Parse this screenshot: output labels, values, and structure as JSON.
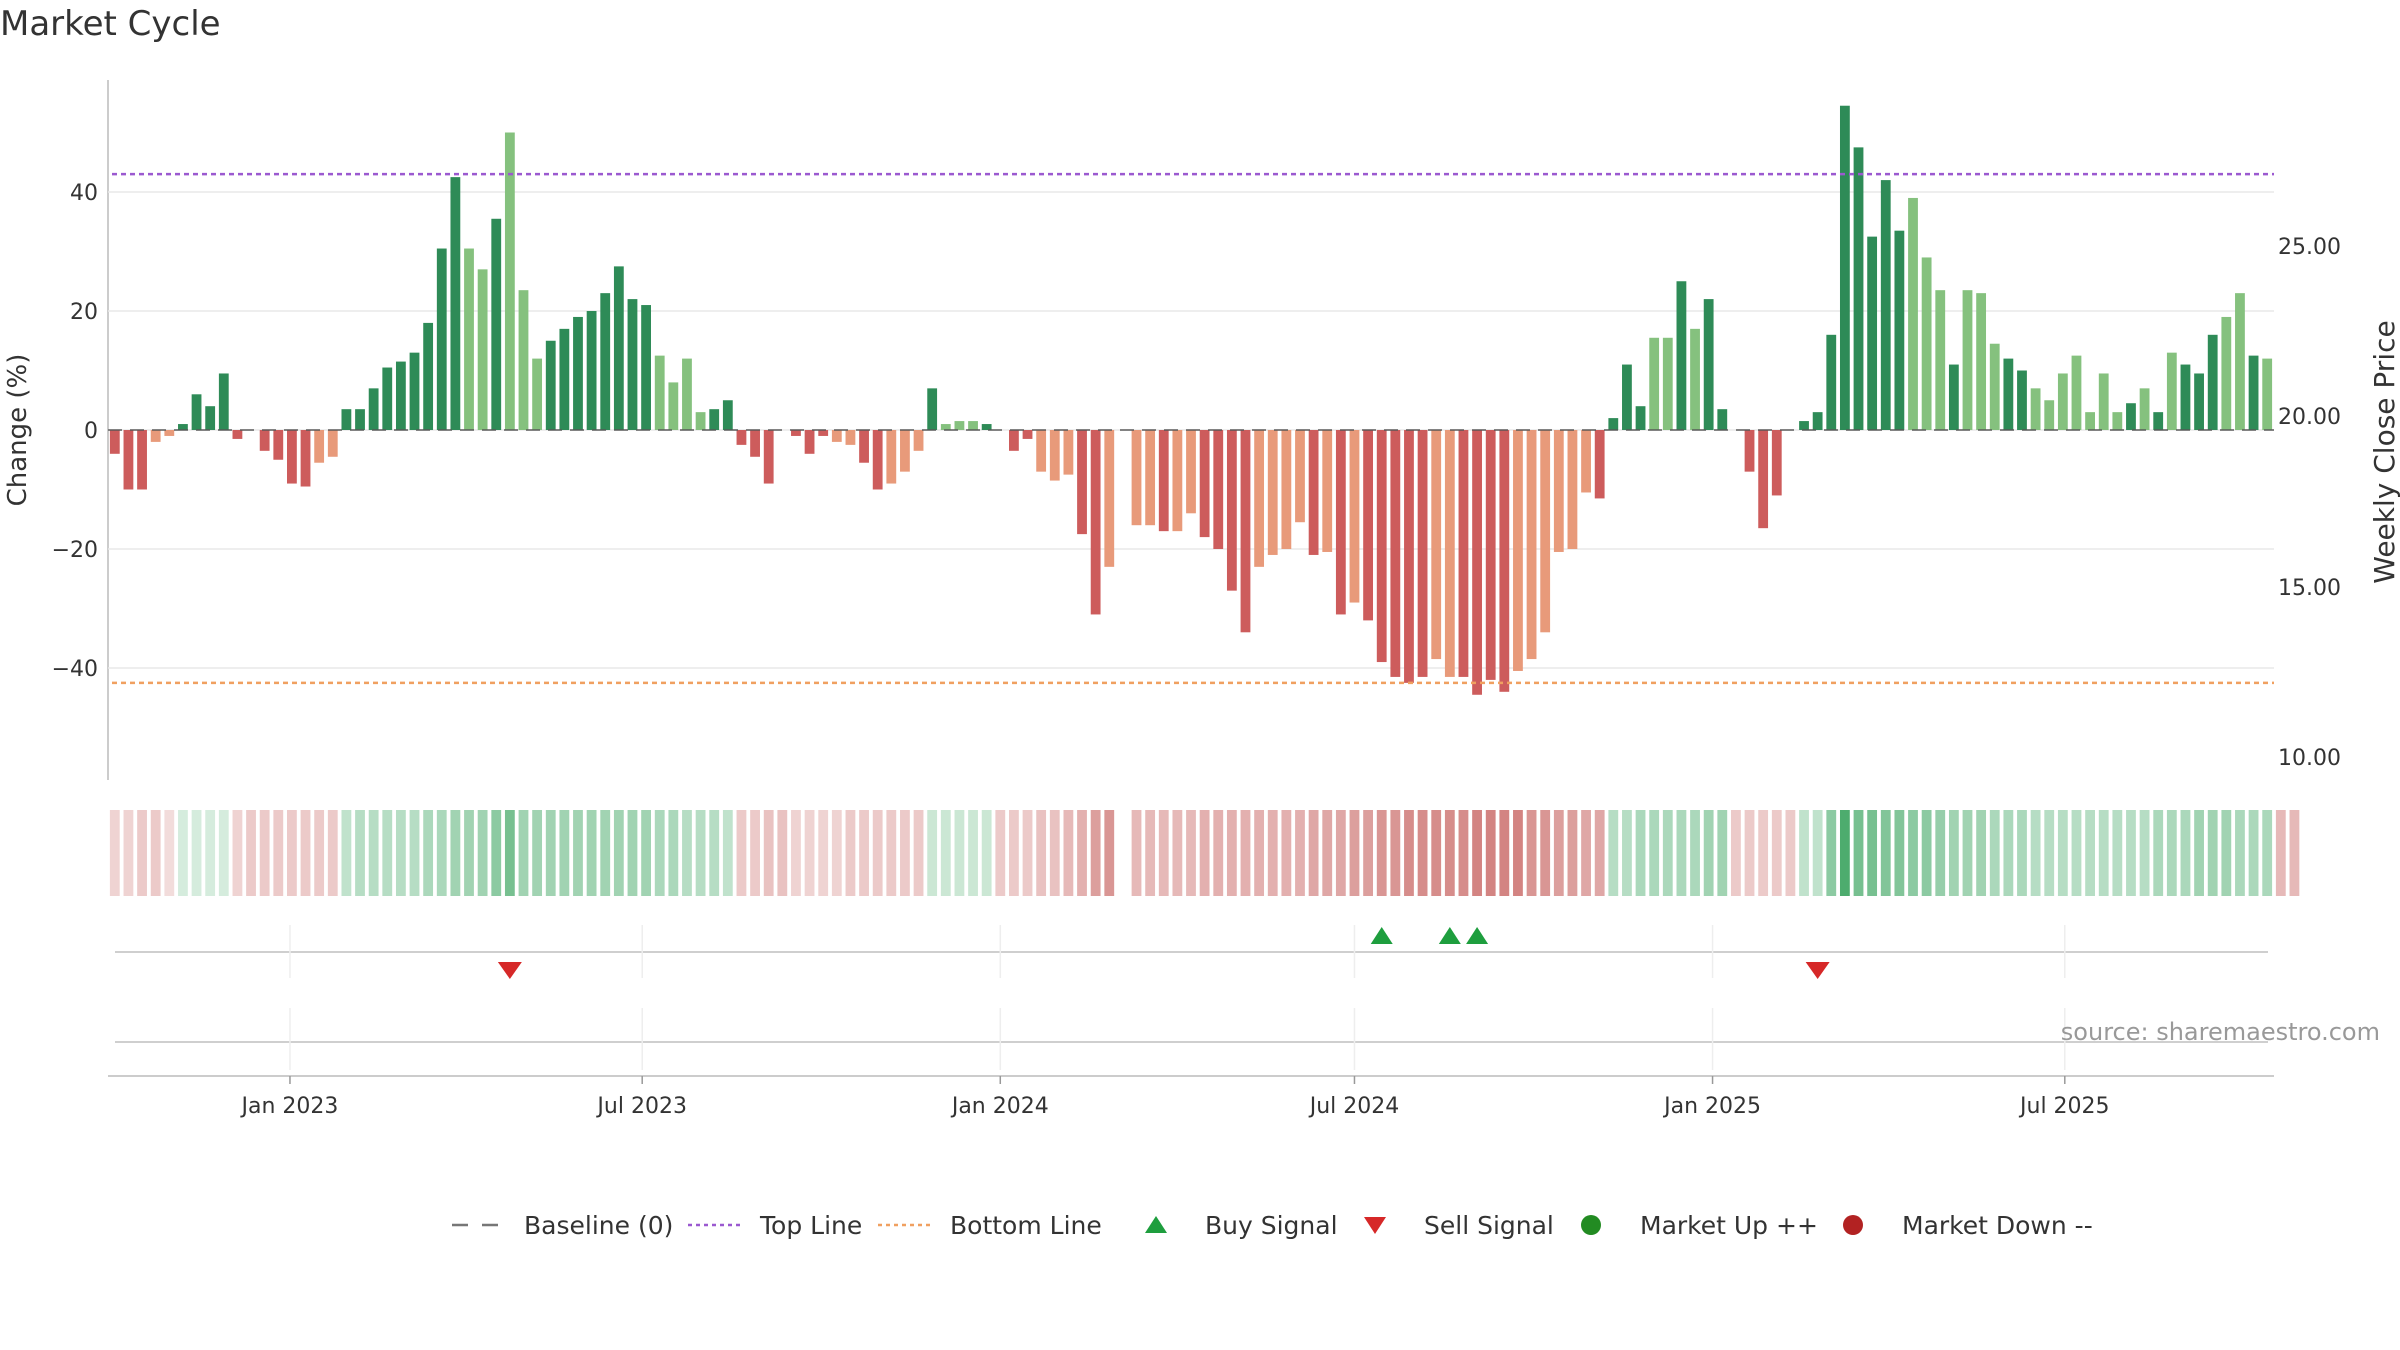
{
  "title": "Market Cycle",
  "source": "source: sharemaestro.com",
  "colors": {
    "up_dark": "#2e8b57",
    "up_light": "#85c17e",
    "down_dark": "#cd5c5c",
    "down_light": "#e89a7a",
    "top_line": "#9b59d0",
    "bottom_line": "#f0a060",
    "buy": "#1e9e3e",
    "sell": "#d62828",
    "market_up": "#228b22",
    "market_down": "#b22222"
  },
  "chart_data": {
    "type": "bar",
    "ylabel": "Change (%)",
    "y2label": "Weekly Close Price",
    "yticks": [
      -40,
      -20,
      0,
      20,
      40
    ],
    "ylim": [
      -59,
      59
    ],
    "y2ticks": [
      "10.00",
      "15.00",
      "20.00",
      "25.00"
    ],
    "xticks": [
      "Jan 2023",
      "Jul 2023",
      "Jan 2024",
      "Jul 2024",
      "Jan 2025",
      "Jul 2025"
    ],
    "top_line": 43,
    "bottom_line": -42.5,
    "x_start": "2022-10-03",
    "values": [
      -4,
      -10,
      -10,
      -2,
      -1,
      1,
      6,
      4,
      9.5,
      -1.5,
      0,
      -3.5,
      -5,
      -9,
      -9.5,
      -5.5,
      -4.5,
      3.5,
      3.5,
      7,
      10.5,
      11.5,
      13,
      18,
      30.5,
      42.5,
      30.5,
      27,
      35.5,
      50,
      23.5,
      12,
      15,
      17,
      19,
      20,
      23,
      27.5,
      22,
      21,
      12.5,
      8,
      12,
      3,
      3.5,
      5,
      -2.5,
      -4.5,
      -9,
      0,
      -1,
      -4,
      -1,
      -2,
      -2.5,
      -5.5,
      -10,
      -9,
      -7,
      -3.5,
      7,
      1,
      1.5,
      1.5,
      1,
      0,
      -3.5,
      -1.5,
      -7,
      -8.5,
      -7.5,
      -17.5,
      -31,
      -23,
      0,
      -16,
      -16,
      -17,
      -17,
      -14,
      -18,
      -20,
      -27,
      -34,
      -23,
      -21,
      -20,
      -15.5,
      -21,
      -20.5,
      -31,
      -29,
      -32,
      -39,
      -41.5,
      -42.5,
      -41.5,
      -38.5,
      -41.5,
      -41.5,
      -44.5,
      -42,
      -44,
      -40.5,
      -38.5,
      -34,
      -20.5,
      -20,
      -10.5,
      -11.5,
      2,
      11,
      4,
      15.5,
      15.5,
      25,
      17,
      22,
      3.5,
      0,
      -7,
      -16.5,
      -11,
      0,
      1.5,
      3,
      16,
      54.5,
      47.5,
      32.5,
      42,
      33.5,
      39,
      29,
      23.5,
      11,
      23.5,
      23,
      14.5,
      12,
      10,
      7,
      5,
      9.5,
      12.5,
      3,
      9.5,
      3,
      4.5,
      7,
      3,
      13,
      11,
      9.5,
      16,
      19,
      23,
      12.5,
      12
    ],
    "light_indices": [
      4,
      3,
      15,
      16,
      26,
      27,
      29,
      30,
      31,
      40,
      41,
      42,
      43,
      53,
      54,
      57,
      58,
      59,
      61,
      62,
      63,
      68,
      69,
      70,
      73,
      75,
      76,
      78,
      79,
      84,
      85,
      86,
      87,
      89,
      91,
      97,
      98,
      103,
      104,
      105,
      106,
      107,
      108,
      113,
      114,
      116,
      119,
      123,
      132,
      133,
      134,
      136,
      137,
      138,
      141,
      142,
      143,
      144,
      145,
      146,
      147,
      149,
      151,
      155,
      156,
      158,
      163,
      164
    ],
    "cycle_strength": [
      0.25,
      0.25,
      0.3,
      0.3,
      0.2,
      0.2,
      0.2,
      0.2,
      0.2,
      0.25,
      0.3,
      0.3,
      0.3,
      0.3,
      0.3,
      0.3,
      0.3,
      0.3,
      0.35,
      0.35,
      0.35,
      0.35,
      0.35,
      0.4,
      0.4,
      0.45,
      0.45,
      0.45,
      0.55,
      0.65,
      0.45,
      0.45,
      0.45,
      0.45,
      0.45,
      0.45,
      0.45,
      0.45,
      0.45,
      0.45,
      0.4,
      0.4,
      0.35,
      0.35,
      0.35,
      0.3,
      0.3,
      0.3,
      0.35,
      0.35,
      0.25,
      0.25,
      0.25,
      0.25,
      0.3,
      0.3,
      0.3,
      0.3,
      0.3,
      0.3,
      0.25,
      0.25,
      0.25,
      0.25,
      0.25,
      0.3,
      0.3,
      0.3,
      0.35,
      0.35,
      0.4,
      0.45,
      0.55,
      0.6,
      0,
      0.4,
      0.4,
      0.4,
      0.4,
      0.4,
      0.45,
      0.45,
      0.45,
      0.45,
      0.45,
      0.45,
      0.45,
      0.45,
      0.5,
      0.5,
      0.5,
      0.55,
      0.55,
      0.6,
      0.6,
      0.65,
      0.65,
      0.65,
      0.65,
      0.65,
      0.7,
      0.7,
      0.7,
      0.7,
      0.6,
      0.6,
      0.55,
      0.55,
      0.5,
      0.5,
      0.35,
      0.35,
      0.4,
      0.4,
      0.4,
      0.4,
      0.4,
      0.45,
      0.45,
      0.3,
      0.3,
      0.3,
      0.3,
      0.3,
      0.3,
      0.3,
      0.55,
      0.85,
      0.65,
      0.65,
      0.6,
      0.6,
      0.55,
      0.55,
      0.5,
      0.45,
      0.45,
      0.45,
      0.4,
      0.4,
      0.4,
      0.35,
      0.35,
      0.35,
      0.35,
      0.35,
      0.35,
      0.35,
      0.35,
      0.35,
      0.4,
      0.4,
      0.4,
      0.45,
      0.45,
      0.45,
      0.4,
      0.4,
      0.4,
      0.4,
      0.4
    ],
    "buy_signals": [
      93,
      98,
      100
    ],
    "sell_signals": [
      29,
      125
    ],
    "legend": [
      {
        "label": "Baseline (0)",
        "kind": "dash",
        "color": "#777777"
      },
      {
        "label": "Top Line",
        "kind": "dotted",
        "color": "#9b59d0"
      },
      {
        "label": "Bottom Line",
        "kind": "dotted",
        "color": "#f0a060"
      },
      {
        "label": "Buy Signal",
        "kind": "triangle-up",
        "color": "#1e9e3e"
      },
      {
        "label": "Sell Signal",
        "kind": "triangle-down",
        "color": "#d62828"
      },
      {
        "label": "Market Up ++",
        "kind": "circle",
        "color": "#228b22"
      },
      {
        "label": "Market Down --",
        "kind": "circle",
        "color": "#b22222"
      }
    ]
  }
}
